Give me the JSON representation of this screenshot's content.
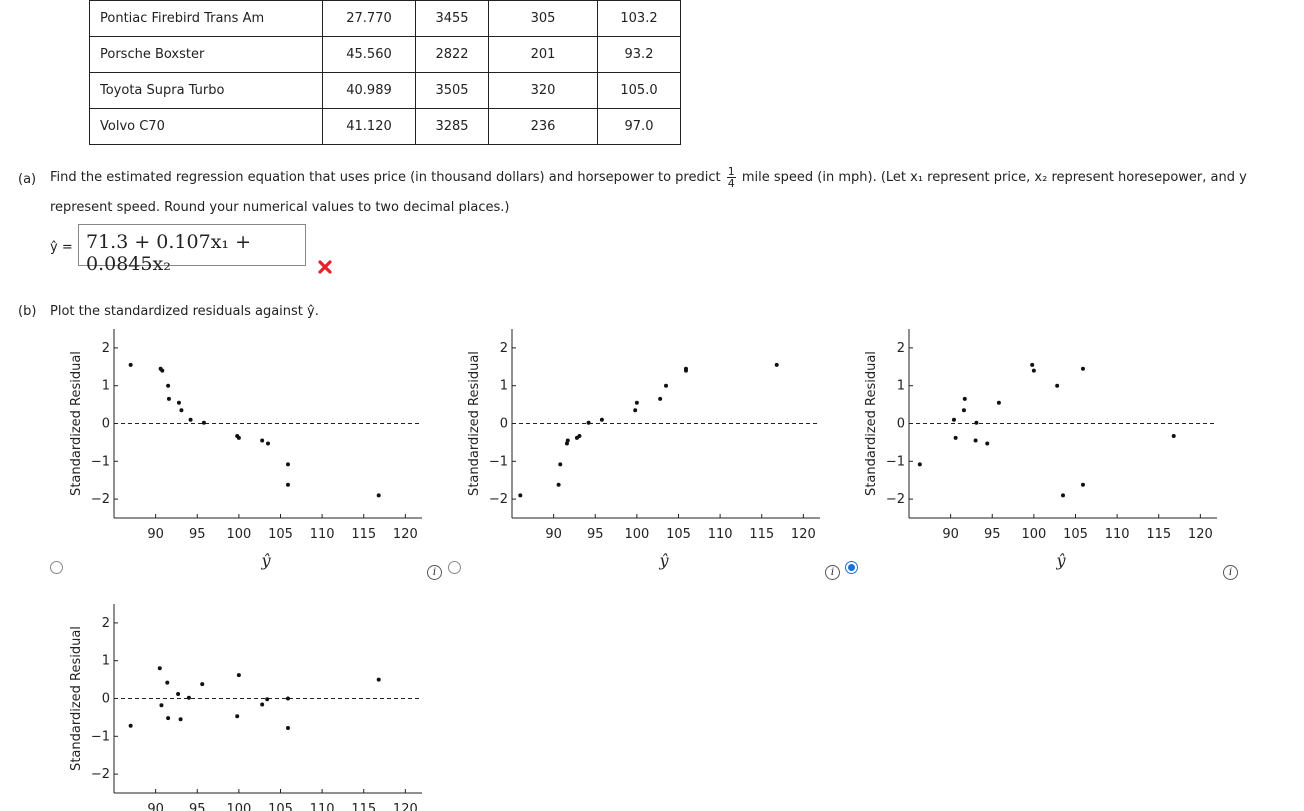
{
  "table": {
    "rows": [
      [
        "Pontiac Firebird Trans Am",
        "27.770",
        "3455",
        "305",
        "103.2"
      ],
      [
        "Porsche Boxster",
        "45.560",
        "2822",
        "201",
        "93.2"
      ],
      [
        "Toyota Supra Turbo",
        "40.989",
        "3505",
        "320",
        "105.0"
      ],
      [
        "Volvo C70",
        "41.120",
        "3285",
        "236",
        "97.0"
      ]
    ]
  },
  "part_a": {
    "letter": "(a)",
    "text_before": "Find the estimated regression equation that uses price (in thousand dollars) and horsepower to predict",
    "frac_num": "1",
    "frac_den": "4",
    "text_after": "mile speed (in mph). (Let x₁ represent price, x₂ represent horesepower, and y",
    "text_line2": "represent speed. Round your numerical values to two decimal places.)",
    "yhat_label": "ŷ =",
    "answer": "71.3 + 0.107x₁ + 0.0845x₂",
    "result_color": "#e8202a"
  },
  "part_b": {
    "letter": "(b)",
    "text": "Plot the standardized residuals against ŷ."
  },
  "colors": {
    "accent": "#1a6fdc",
    "error": "#e8202a"
  },
  "chart_data": [
    {
      "type": "scatter",
      "title": "",
      "xlabel": "ŷ",
      "ylabel": "Standardized Residual",
      "xlim": [
        85,
        122
      ],
      "ylim": [
        -2.5,
        2.5
      ],
      "xticks": [
        "90",
        "95",
        "100",
        "105",
        "110",
        "115",
        "120"
      ],
      "yticks": [
        "2",
        "1",
        "0",
        "−1",
        "−2"
      ],
      "reference_line": 0,
      "selected": false,
      "points": [
        [
          87.0,
          1.55
        ],
        [
          90.6,
          1.45
        ],
        [
          90.8,
          1.4
        ],
        [
          91.5,
          1.0
        ],
        [
          91.6,
          0.65
        ],
        [
          92.8,
          0.55
        ],
        [
          93.1,
          0.35
        ],
        [
          94.2,
          0.1
        ],
        [
          95.8,
          0.02
        ],
        [
          99.8,
          -0.33
        ],
        [
          100.0,
          -0.38
        ],
        [
          102.8,
          -0.45
        ],
        [
          103.5,
          -0.53
        ],
        [
          105.9,
          -1.08
        ],
        [
          105.9,
          -1.62
        ],
        [
          116.8,
          -1.9
        ]
      ]
    },
    {
      "type": "scatter",
      "title": "",
      "xlabel": "ŷ",
      "ylabel": "Standardized Residual",
      "xlim": [
        85,
        122
      ],
      "ylim": [
        -2.5,
        2.5
      ],
      "xticks": [
        "90",
        "95",
        "100",
        "105",
        "110",
        "115",
        "120"
      ],
      "yticks": [
        "2",
        "1",
        "0",
        "−1",
        "−2"
      ],
      "reference_line": 0,
      "selected": false,
      "points": [
        [
          86.0,
          -1.9
        ],
        [
          90.6,
          -1.62
        ],
        [
          90.8,
          -1.08
        ],
        [
          91.6,
          -0.53
        ],
        [
          91.7,
          -0.45
        ],
        [
          92.8,
          -0.38
        ],
        [
          93.1,
          -0.33
        ],
        [
          94.2,
          0.02
        ],
        [
          95.8,
          0.1
        ],
        [
          99.8,
          0.35
        ],
        [
          100.0,
          0.55
        ],
        [
          102.8,
          0.65
        ],
        [
          103.5,
          1.0
        ],
        [
          105.9,
          1.4
        ],
        [
          105.9,
          1.45
        ],
        [
          116.8,
          1.55
        ]
      ]
    },
    {
      "type": "scatter",
      "title": "",
      "xlabel": "ŷ",
      "ylabel": "Standardized Residual",
      "xlim": [
        85,
        122
      ],
      "ylim": [
        -2.5,
        2.5
      ],
      "xticks": [
        "90",
        "95",
        "100",
        "105",
        "110",
        "115",
        "120"
      ],
      "yticks": [
        "2",
        "1",
        "0",
        "−1",
        "−2"
      ],
      "reference_line": 0,
      "selected": true,
      "points": [
        [
          86.3,
          -1.08
        ],
        [
          90.4,
          0.1
        ],
        [
          90.6,
          -0.38
        ],
        [
          91.6,
          0.35
        ],
        [
          91.7,
          0.65
        ],
        [
          93.1,
          0.02
        ],
        [
          93.0,
          -0.45
        ],
        [
          94.4,
          -0.53
        ],
        [
          95.8,
          0.55
        ],
        [
          99.8,
          1.55
        ],
        [
          100.0,
          1.4
        ],
        [
          102.8,
          1.0
        ],
        [
          103.5,
          -1.9
        ],
        [
          105.9,
          1.45
        ],
        [
          105.9,
          -1.62
        ],
        [
          116.8,
          -0.33
        ]
      ]
    },
    {
      "type": "scatter",
      "title": "",
      "xlabel": "",
      "ylabel": "Standardized Residual",
      "xlim": [
        85,
        122
      ],
      "ylim": [
        -2.5,
        2.5
      ],
      "xticks": [
        "90",
        "95",
        "100",
        "105",
        "110",
        "115",
        "120"
      ],
      "yticks": [
        "2",
        "1",
        "0",
        "−1",
        "−2"
      ],
      "reference_line": 0,
      "selected": false,
      "points": [
        [
          87.0,
          -0.72
        ],
        [
          90.5,
          0.8
        ],
        [
          90.7,
          -0.18
        ],
        [
          91.4,
          0.42
        ],
        [
          91.5,
          -0.52
        ],
        [
          92.7,
          0.12
        ],
        [
          93.0,
          -0.55
        ],
        [
          94.0,
          0.02
        ],
        [
          95.6,
          0.38
        ],
        [
          99.8,
          -0.47
        ],
        [
          100.0,
          0.62
        ],
        [
          102.8,
          -0.16
        ],
        [
          103.4,
          -0.02
        ],
        [
          105.9,
          0.0
        ],
        [
          105.9,
          -0.78
        ],
        [
          116.8,
          0.5
        ]
      ]
    }
  ]
}
